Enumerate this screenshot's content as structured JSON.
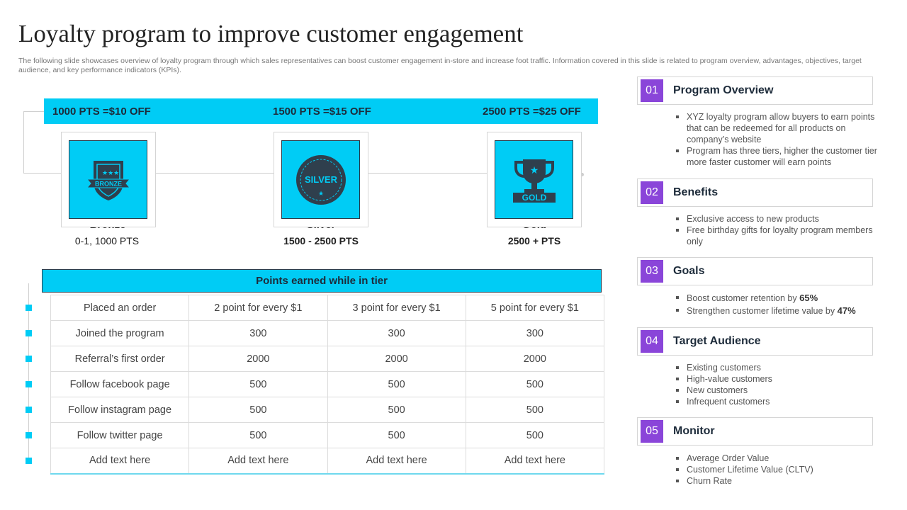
{
  "page": {
    "title": "Loyalty program to improve customer engagement",
    "subtitle": "The following slide showcases overview of loyalty program through which sales representatives can boost customer engagement in-store and increase foot traffic. Information covered in this slide is related to program overview, advantages, objectives, target audience, and key performance indicators (KPIs)."
  },
  "tiers": [
    {
      "points_offer": "1000 PTS =$10 OFF",
      "badge_text": "BRONZE",
      "name": "Bronze",
      "range": "0-1, 1000 PTS",
      "icon": "bronze-badge-icon"
    },
    {
      "points_offer": "1500 PTS =$15 OFF",
      "badge_text": "SILVER",
      "name": "Silver",
      "range": "1500 - 2500 PTS",
      "icon": "silver-seal-icon"
    },
    {
      "points_offer": "2500 PTS =$25 OFF",
      "badge_text": "GOLD",
      "name": "Gold",
      "range": "2500 + PTS",
      "icon": "gold-trophy-icon"
    }
  ],
  "table": {
    "header": "Points earned while in tier",
    "rows": [
      [
        "Placed an order",
        "2 point for every $1",
        "3 point for every $1",
        "5 point for every $1"
      ],
      [
        "Joined the program",
        "300",
        "300",
        "300"
      ],
      [
        "Referral’s first order",
        "2000",
        "2000",
        "2000"
      ],
      [
        "Follow facebook page",
        "500",
        "500",
        "500"
      ],
      [
        "Follow instagram page",
        "500",
        "500",
        "500"
      ],
      [
        "Follow twitter page",
        "500",
        "500",
        "500"
      ],
      [
        "Add text here",
        "Add text here",
        "Add text here",
        "Add text here"
      ]
    ]
  },
  "sections": [
    {
      "num": "01",
      "title": "Program Overview",
      "items": [
        "XYZ loyalty program allow buyers to earn points that can be redeemed for all products on company’s website",
        "Program has three tiers, higher the customer tier more faster customer will earn points"
      ]
    },
    {
      "num": "02",
      "title": "Benefits",
      "items": [
        "Exclusive access to new products",
        "Free birthday gifts for loyalty program members only"
      ]
    },
    {
      "num": "03",
      "title": "Goals",
      "items": [
        {
          "text": "Boost customer retention by ",
          "strong": "65%"
        },
        {
          "text": "Strengthen customer lifetime value  by ",
          "strong": "47%"
        }
      ]
    },
    {
      "num": "04",
      "title": "Target Audience",
      "items": [
        "Existing customers",
        "High-value  customers",
        "New customers",
        "Infrequent  customers"
      ]
    },
    {
      "num": "05",
      "title": "Monitor",
      "items": [
        "Average  Order Value",
        "Customer Lifetime Value (CLTV)",
        "Churn Rate"
      ]
    }
  ],
  "colors": {
    "accent": "#00ccf5",
    "number_badge": "#8a45d9",
    "dark": "#2a3b4a"
  }
}
